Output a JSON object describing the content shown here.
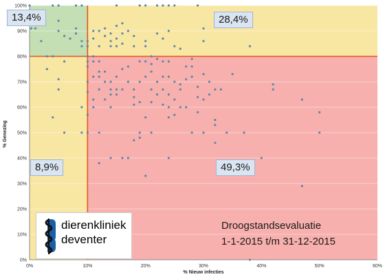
{
  "chart_data": {
    "type": "scatter",
    "xlabel": "% Nieuw infecties",
    "ylabel": "% Genezing",
    "xlim": [
      0,
      60
    ],
    "ylim": [
      0,
      100
    ],
    "x_ticks": [
      "0%",
      "10%",
      "20%",
      "30%",
      "40%",
      "50%",
      "60%"
    ],
    "y_ticks": [
      "0%",
      "10%",
      "20%",
      "30%",
      "40%",
      "50%",
      "60%",
      "70%",
      "80%",
      "90%",
      "100%"
    ],
    "thresholds": {
      "x": 10,
      "y": 80
    },
    "quadrant_colors": {
      "top_left": "#c4dfb4",
      "top_right": "#f8e6a3",
      "bottom_left": "#f8e6a3",
      "bottom_right": "#f7b0ae"
    },
    "threshold_line_color": "#e0561f",
    "point_color": "#5f86a8",
    "quadrant_labels": {
      "top_left": "13,4%",
      "top_right": "28,4%",
      "bottom_left": "8,9%",
      "bottom_right": "49,3%"
    },
    "points": [
      [
        0,
        100
      ],
      [
        0.3,
        91
      ],
      [
        1,
        91
      ],
      [
        2,
        86
      ],
      [
        3,
        80
      ],
      [
        4,
        100
      ],
      [
        5,
        100
      ],
      [
        5,
        94
      ],
      [
        5,
        90
      ],
      [
        6,
        88
      ],
      [
        6,
        78
      ],
      [
        7,
        87
      ],
      [
        8,
        100
      ],
      [
        8,
        91
      ],
      [
        8,
        89
      ],
      [
        9,
        100
      ],
      [
        9,
        86
      ],
      [
        9,
        84
      ],
      [
        3,
        75
      ],
      [
        4,
        80
      ],
      [
        5,
        71
      ],
      [
        5,
        67
      ],
      [
        4,
        56
      ],
      [
        6,
        50
      ],
      [
        9,
        60
      ],
      [
        9,
        50
      ],
      [
        10,
        76
      ],
      [
        10,
        70
      ],
      [
        10,
        66
      ],
      [
        10,
        57
      ],
      [
        10,
        50
      ],
      [
        10,
        84
      ],
      [
        10,
        86
      ],
      [
        11,
        87
      ],
      [
        11,
        90
      ],
      [
        12,
        90
      ],
      [
        12,
        84
      ],
      [
        13,
        91
      ],
      [
        13,
        88
      ],
      [
        14,
        89
      ],
      [
        14,
        86
      ],
      [
        14,
        84
      ],
      [
        15,
        92
      ],
      [
        15,
        87
      ],
      [
        15,
        84
      ],
      [
        16,
        93
      ],
      [
        16,
        89
      ],
      [
        16,
        85
      ],
      [
        17,
        90
      ],
      [
        18,
        88
      ],
      [
        18,
        84
      ],
      [
        20,
        86
      ],
      [
        20,
        84
      ],
      [
        15,
        100
      ],
      [
        19,
        100
      ],
      [
        20,
        100
      ],
      [
        22,
        100
      ],
      [
        23,
        100
      ],
      [
        24,
        100
      ],
      [
        25,
        100
      ],
      [
        29,
        100
      ],
      [
        24,
        90
      ],
      [
        22,
        89
      ],
      [
        23,
        87
      ],
      [
        25,
        84
      ],
      [
        26,
        83
      ],
      [
        30,
        91
      ],
      [
        30,
        86
      ],
      [
        38,
        84
      ],
      [
        11,
        80
      ],
      [
        11,
        78
      ],
      [
        11,
        72
      ],
      [
        11,
        63
      ],
      [
        12,
        78
      ],
      [
        12,
        74
      ],
      [
        12,
        72
      ],
      [
        12,
        67
      ],
      [
        13,
        74
      ],
      [
        13,
        70
      ],
      [
        13,
        63
      ],
      [
        14,
        70
      ],
      [
        14,
        67
      ],
      [
        14,
        65
      ],
      [
        14,
        60
      ],
      [
        15,
        72
      ],
      [
        15,
        67
      ],
      [
        15,
        65
      ],
      [
        16,
        75
      ],
      [
        16,
        67
      ],
      [
        17,
        76
      ],
      [
        17,
        70
      ],
      [
        18,
        67
      ],
      [
        18,
        64
      ],
      [
        18,
        61
      ],
      [
        18,
        47
      ],
      [
        19,
        78
      ],
      [
        19,
        70
      ],
      [
        19,
        62
      ],
      [
        19,
        50
      ],
      [
        19,
        48
      ],
      [
        20,
        78
      ],
      [
        20,
        72
      ],
      [
        20,
        56
      ],
      [
        21,
        80
      ],
      [
        21,
        77
      ],
      [
        21,
        74
      ],
      [
        21,
        67
      ],
      [
        21,
        62
      ],
      [
        22,
        79
      ],
      [
        22,
        70
      ],
      [
        22,
        65
      ],
      [
        23,
        78
      ],
      [
        23,
        72
      ],
      [
        23,
        67
      ],
      [
        23,
        61
      ],
      [
        24,
        78
      ],
      [
        24,
        72
      ],
      [
        24,
        65
      ],
      [
        24,
        60
      ],
      [
        24,
        56
      ],
      [
        25,
        70
      ],
      [
        25,
        63
      ],
      [
        25,
        57
      ],
      [
        26,
        69
      ],
      [
        26,
        67
      ],
      [
        26,
        60
      ],
      [
        27,
        76
      ],
      [
        27,
        71
      ],
      [
        27,
        60
      ],
      [
        28,
        79
      ],
      [
        28,
        76
      ],
      [
        28,
        72
      ],
      [
        29,
        68
      ],
      [
        29,
        64
      ],
      [
        29,
        58
      ],
      [
        30,
        73
      ],
      [
        30,
        63
      ],
      [
        31,
        70
      ],
      [
        31,
        65
      ],
      [
        32,
        67
      ],
      [
        32,
        55
      ],
      [
        32,
        46
      ],
      [
        33,
        67
      ],
      [
        35,
        73
      ],
      [
        12,
        50
      ],
      [
        12,
        38
      ],
      [
        14,
        40
      ],
      [
        16,
        40
      ],
      [
        17,
        40
      ],
      [
        20,
        33
      ],
      [
        21,
        50
      ],
      [
        24,
        40
      ],
      [
        28,
        50
      ],
      [
        30,
        50
      ],
      [
        32,
        53
      ],
      [
        34,
        50
      ],
      [
        37,
        50
      ],
      [
        38,
        0
      ],
      [
        40,
        40
      ],
      [
        42,
        69
      ],
      [
        42,
        67
      ],
      [
        47,
        63
      ],
      [
        47,
        29
      ],
      [
        50,
        58
      ],
      [
        50,
        50
      ],
      [
        10,
        80
      ],
      [
        10,
        78
      ],
      [
        11,
        60
      ]
    ]
  },
  "brand": {
    "line1": "dierenkliniek",
    "line2": "deventer"
  },
  "evaluation": {
    "title": "Droogstandsevaluatie",
    "period": "1-1-2015 t/m 31-12-2015"
  }
}
